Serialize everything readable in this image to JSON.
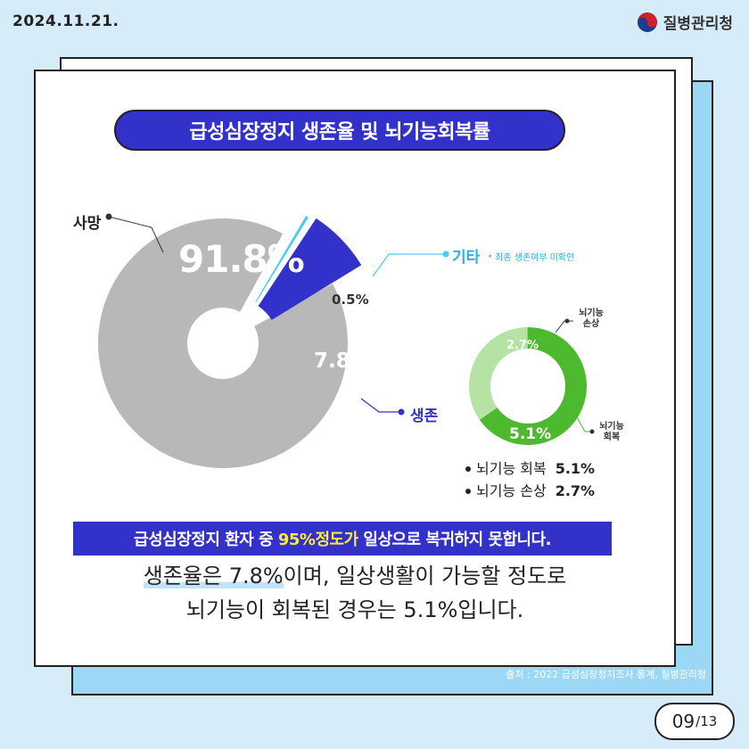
{
  "header": {
    "date": "2024.11.21.",
    "agency": "질병관리청"
  },
  "title": "급성심장정지 생존율 및 뇌기능회복률",
  "chart_data": [
    {
      "type": "pie",
      "categories": [
        "사망",
        "기타",
        "생존"
      ],
      "values": [
        91.8,
        0.5,
        7.8
      ],
      "value_labels": [
        "91.8%",
        "0.5%",
        "7.8%"
      ],
      "note": "* 최종 생존여부 미확인",
      "colors": [
        "#b8b8b8",
        "#48ccf0",
        "#3231c9"
      ]
    },
    {
      "type": "pie",
      "categories": [
        "뇌기능 손상",
        "뇌기능 회복"
      ],
      "category_labels": [
        [
          "뇌기능",
          "손상"
        ],
        [
          "뇌기능",
          "회복"
        ]
      ],
      "values": [
        2.7,
        5.1
      ],
      "value_labels": [
        "2.7%",
        "5.1%"
      ],
      "colors": [
        "#b5e3a3",
        "#4cb92e"
      ]
    }
  ],
  "legend": [
    {
      "label": "뇌기능 회복",
      "value": "5.1%"
    },
    {
      "label": "뇌기능 손상",
      "value": "2.7%"
    }
  ],
  "banner": {
    "pre": "급성심장정지 환자 중 ",
    "highlight": "95%정도가",
    "post": " 일상으로 복귀하지 못합니다."
  },
  "summary": {
    "line1_ul": "생존율은 7.8%",
    "line1_rest": "이며, 일상생활이 가능할 정도로",
    "line2": "뇌기능이 회복된 경우는 5.1%입니다."
  },
  "source": "출처 : 2022 급성심장정지조사 통계, 질병관리청",
  "page": {
    "current": "09",
    "total": "/13"
  }
}
